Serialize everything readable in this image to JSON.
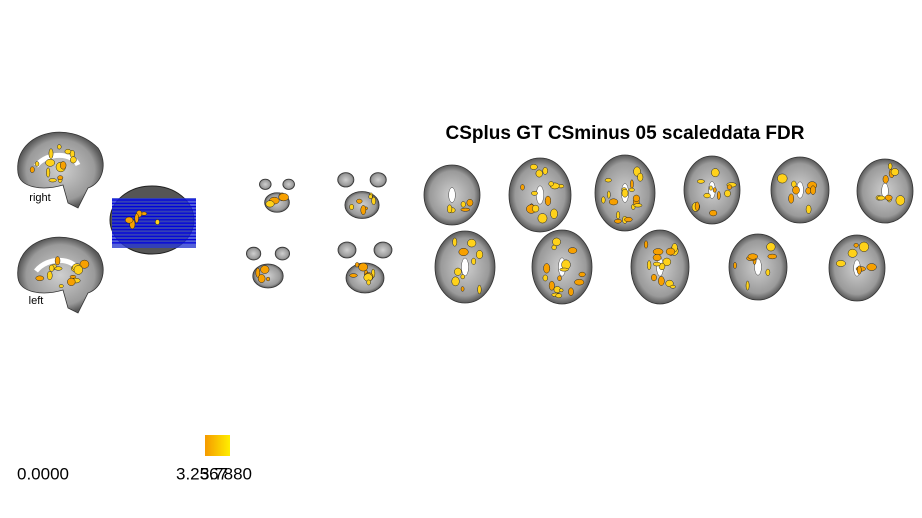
{
  "title": "CSplus GT CSminus 05 scaleddata FDR",
  "sagittal_labels": [
    "right",
    "left"
  ],
  "colorbar": {
    "labels": [
      "0.0000",
      "3.2567",
      "3.7880"
    ]
  }
}
